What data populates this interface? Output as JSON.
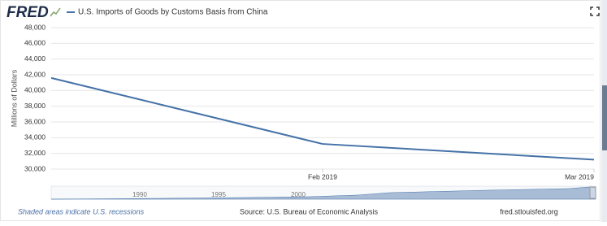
{
  "page": {
    "logo": "FRED",
    "recession_note": "Shaded areas indicate U.S. recessions",
    "source": "Source: U.S. Bureau of Economic Analysis",
    "url": "fred.stlouisfed.org",
    "navigator_labels": [
      "1990",
      "1995",
      "2000"
    ]
  },
  "chart_data": {
    "type": "line",
    "y_label": "Millions of Dollars",
    "categories": [
      null,
      "Feb 2019",
      "Mar 2019"
    ],
    "series": [
      {
        "name": "U.S. Imports of Goods by Customs Basis from China",
        "color": "#4572a7",
        "values": [
          41600,
          33200,
          31200
        ]
      }
    ],
    "ylim": [
      30000,
      48000
    ],
    "yticks": [
      {
        "value": 30000,
        "label": "30,000"
      },
      {
        "value": 32000,
        "label": "32,000"
      },
      {
        "value": 34000,
        "label": "34,000"
      },
      {
        "value": 36000,
        "label": "36,000"
      },
      {
        "value": 38000,
        "label": "38,000"
      },
      {
        "value": 40000,
        "label": "40,000"
      },
      {
        "value": 42000,
        "label": "42,000"
      },
      {
        "value": 44000,
        "label": "44,000"
      },
      {
        "value": 46000,
        "label": "46,000"
      },
      {
        "value": 48000,
        "label": "48,000"
      }
    ],
    "grid": true
  }
}
